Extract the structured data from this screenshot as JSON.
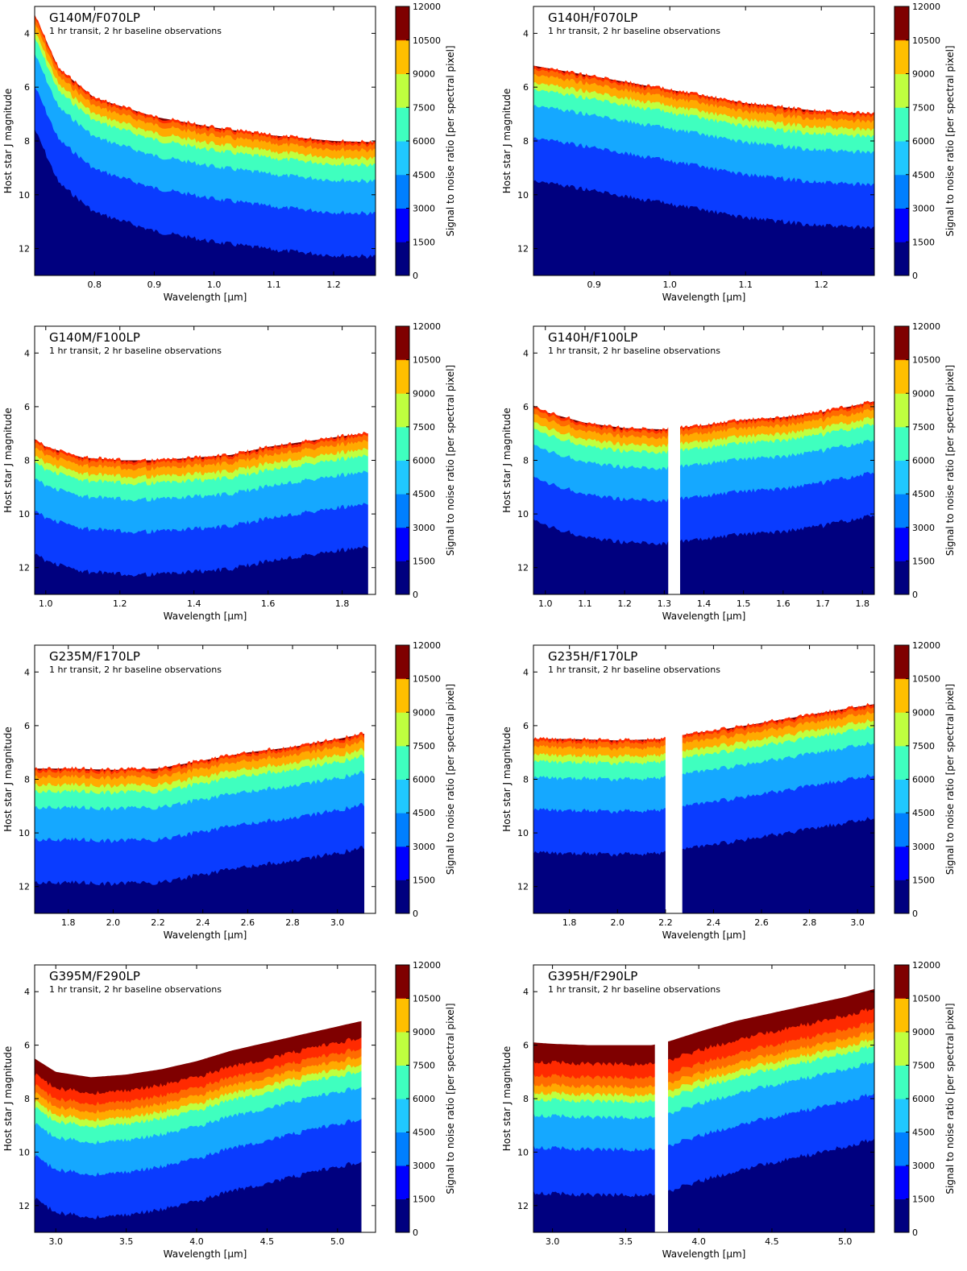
{
  "figure": {
    "ylabel": "Host star J magnitude",
    "xlabel": "Wavelength [μm]",
    "colorbar_label": "Signal to noise ratio [per spectral pixel]",
    "colorbar_levels": [
      0,
      1500,
      3000,
      4500,
      6000,
      7500,
      9000,
      10500,
      12000
    ],
    "colorbar_colors": [
      "#00007f",
      "#0000ff",
      "#007fff",
      "#20c8ff",
      "#3fffbf",
      "#bfff3f",
      "#ffbf00",
      "#ff4000",
      "#7f0000"
    ],
    "band_colors": [
      "#7f0000",
      "#ff2a00",
      "#ff6b00",
      "#ffaa00",
      "#bfff3f",
      "#3fffbf",
      "#15a8ff",
      "#0a3cff",
      "#00007f"
    ]
  },
  "chart_data": [
    {
      "type": "heatmap",
      "title": "G140M/F070LP",
      "subtitle": "1 hr transit, 2 hr baseline observations",
      "xlim": [
        0.7,
        1.27
      ],
      "ylim": [
        13,
        3
      ],
      "xticks": [
        0.8,
        0.9,
        1.0,
        1.1,
        1.2
      ],
      "yticks": [
        4,
        6,
        8,
        10,
        12
      ],
      "saturation_edge": {
        "x": [
          0.7,
          0.74,
          0.8,
          0.9,
          1.0,
          1.1,
          1.2,
          1.27
        ],
        "y": [
          3.3,
          5.3,
          6.4,
          7.1,
          7.5,
          7.8,
          8.0,
          8.05
        ]
      },
      "band_widths": [
        0.0,
        0.1,
        0.2,
        0.3,
        0.25,
        0.6,
        1.2,
        1.6
      ],
      "gap": null
    },
    {
      "type": "heatmap",
      "title": "G140H/F070LP",
      "subtitle": "1 hr transit, 2 hr baseline observations",
      "xlim": [
        0.82,
        1.27
      ],
      "ylim": [
        13,
        3
      ],
      "xticks": [
        0.9,
        1.0,
        1.1,
        1.2
      ],
      "yticks": [
        4,
        6,
        8,
        10,
        12
      ],
      "saturation_edge": {
        "x": [
          0.82,
          0.85,
          0.9,
          1.0,
          1.1,
          1.2,
          1.27
        ],
        "y": [
          5.2,
          5.35,
          5.6,
          6.1,
          6.6,
          6.9,
          7.0
        ]
      },
      "band_widths": [
        0.0,
        0.1,
        0.2,
        0.3,
        0.25,
        0.6,
        1.2,
        1.6
      ],
      "gap": null
    },
    {
      "type": "heatmap",
      "title": "G140M/F100LP",
      "subtitle": "1 hr transit, 2 hr baseline observations",
      "xlim": [
        0.97,
        1.89
      ],
      "ylim": [
        13,
        3
      ],
      "xticks": [
        1.0,
        1.2,
        1.4,
        1.6,
        1.8
      ],
      "yticks": [
        4,
        6,
        8,
        10,
        12
      ],
      "saturation_edge": {
        "x": [
          0.97,
          1.0,
          1.1,
          1.2,
          1.3,
          1.4,
          1.5,
          1.6,
          1.7,
          1.8,
          1.87
        ],
        "y": [
          7.2,
          7.5,
          7.9,
          8.0,
          8.0,
          7.9,
          7.8,
          7.5,
          7.3,
          7.1,
          7.0
        ]
      },
      "band_widths": [
        0.0,
        0.1,
        0.2,
        0.3,
        0.25,
        0.6,
        1.2,
        1.6
      ],
      "gap": [
        1.87,
        1.89
      ]
    },
    {
      "type": "heatmap",
      "title": "G140H/F100LP",
      "subtitle": "1 hr transit, 2 hr baseline observations",
      "xlim": [
        0.97,
        1.83
      ],
      "ylim": [
        13,
        3
      ],
      "xticks": [
        1.0,
        1.1,
        1.2,
        1.3,
        1.4,
        1.5,
        1.6,
        1.7,
        1.8
      ],
      "yticks": [
        4,
        6,
        8,
        10,
        12
      ],
      "saturation_edge": {
        "x": [
          0.97,
          1.0,
          1.1,
          1.2,
          1.3,
          1.4,
          1.5,
          1.6,
          1.7,
          1.8,
          1.83
        ],
        "y": [
          6.0,
          6.2,
          6.6,
          6.8,
          6.85,
          6.7,
          6.5,
          6.4,
          6.2,
          5.9,
          5.8
        ]
      },
      "band_widths": [
        0.0,
        0.1,
        0.2,
        0.3,
        0.25,
        0.6,
        1.2,
        1.6
      ],
      "gap": [
        1.31,
        1.34
      ]
    },
    {
      "type": "heatmap",
      "title": "G235M/F170LP",
      "subtitle": "1 hr transit, 2 hr baseline observations",
      "xlim": [
        1.65,
        3.17
      ],
      "ylim": [
        13,
        3
      ],
      "xticks": [
        1.8,
        2.0,
        2.2,
        2.4,
        2.6,
        2.8,
        3.0
      ],
      "yticks": [
        4,
        6,
        8,
        10,
        12
      ],
      "saturation_edge": {
        "x": [
          1.65,
          1.8,
          2.0,
          2.2,
          2.4,
          2.6,
          2.8,
          3.0,
          3.12
        ],
        "y": [
          7.6,
          7.6,
          7.65,
          7.6,
          7.3,
          7.0,
          6.8,
          6.5,
          6.3
        ]
      },
      "band_widths": [
        0.0,
        0.1,
        0.2,
        0.3,
        0.25,
        0.6,
        1.2,
        1.6
      ],
      "gap": [
        3.12,
        3.17
      ]
    },
    {
      "type": "heatmap",
      "title": "G235H/F170LP",
      "subtitle": "1 hr transit, 2 hr baseline observations",
      "xlim": [
        1.65,
        3.07
      ],
      "ylim": [
        13,
        3
      ],
      "xticks": [
        1.8,
        2.0,
        2.2,
        2.4,
        2.6,
        2.8,
        3.0
      ],
      "yticks": [
        4,
        6,
        8,
        10,
        12
      ],
      "saturation_edge": {
        "x": [
          1.65,
          1.8,
          2.0,
          2.2,
          2.3,
          2.4,
          2.6,
          2.8,
          3.0,
          3.07
        ],
        "y": [
          6.5,
          6.5,
          6.55,
          6.5,
          6.3,
          6.2,
          5.9,
          5.6,
          5.3,
          5.2
        ]
      },
      "band_widths": [
        0.0,
        0.1,
        0.2,
        0.3,
        0.25,
        0.6,
        1.2,
        1.6
      ],
      "gap": [
        2.2,
        2.27
      ]
    },
    {
      "type": "heatmap",
      "title": "G395M/F290LP",
      "subtitle": "1 hr transit, 2 hr baseline observations",
      "xlim": [
        2.85,
        5.27
      ],
      "ylim": [
        13,
        3
      ],
      "xticks": [
        3.0,
        3.5,
        4.0,
        4.5,
        5.0
      ],
      "yticks": [
        4,
        6,
        8,
        10,
        12
      ],
      "saturation_edge": {
        "x": [
          2.85,
          3.0,
          3.25,
          3.5,
          3.75,
          4.0,
          4.25,
          4.5,
          4.75,
          5.0,
          5.17
        ],
        "y": [
          6.5,
          7.0,
          7.2,
          7.1,
          6.9,
          6.6,
          6.2,
          5.9,
          5.6,
          5.3,
          5.1
        ]
      },
      "band_widths": [
        0.6,
        0.4,
        0.3,
        0.3,
        0.25,
        0.6,
        1.2,
        1.6
      ],
      "gap": [
        5.17,
        5.27
      ]
    },
    {
      "type": "heatmap",
      "title": "G395H/F290LP",
      "subtitle": "1 hr transit, 2 hr baseline observations",
      "xlim": [
        2.87,
        5.2
      ],
      "ylim": [
        13,
        3
      ],
      "xticks": [
        3.0,
        3.5,
        4.0,
        4.5,
        5.0
      ],
      "yticks": [
        4,
        6,
        8,
        10,
        12
      ],
      "saturation_edge": {
        "x": [
          2.87,
          3.0,
          3.25,
          3.5,
          3.68,
          3.8,
          4.0,
          4.25,
          4.5,
          4.75,
          5.0,
          5.2
        ],
        "y": [
          5.9,
          5.95,
          6.0,
          6.0,
          6.0,
          5.85,
          5.5,
          5.1,
          4.8,
          4.5,
          4.2,
          3.9
        ]
      },
      "band_widths": [
        0.7,
        0.5,
        0.35,
        0.3,
        0.25,
        0.6,
        1.2,
        1.7
      ],
      "gap": [
        3.7,
        3.79
      ]
    }
  ]
}
